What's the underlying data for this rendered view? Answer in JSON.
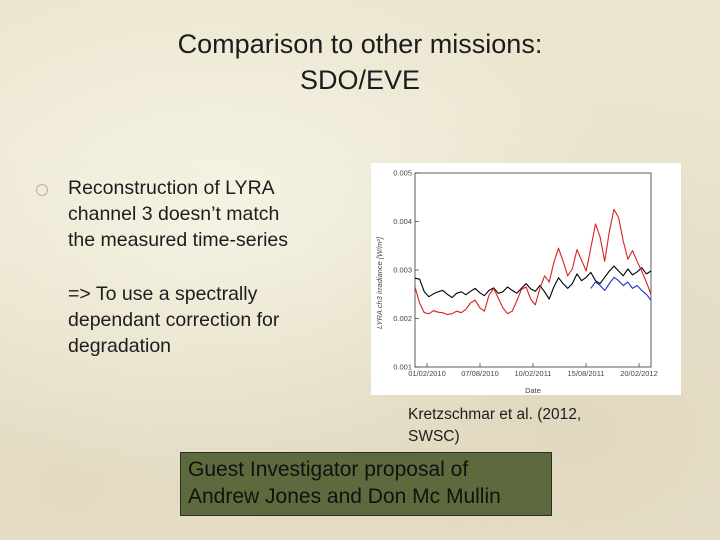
{
  "slide": {
    "title_line1": "Comparison to other missions:",
    "title_line2": "SDO/EVE",
    "bullets": [
      {
        "lines": [
          "Reconstruction of LYRA",
          "channel 3 doesn’t match",
          "the measured time-series"
        ]
      },
      {
        "lines": [
          "=> To use a spectrally",
          "dependant correction for",
          "degradation"
        ]
      }
    ],
    "caption_line1": "Kretzschmar et al. (2012,",
    "caption_line2": "SWSC)",
    "gi_line1": "Guest Investigator proposal of",
    "gi_line2": "Andrew Jones and Don Mc Mullin",
    "colors": {
      "gi_box": "#5c6a3d",
      "bullet": "#b9b29a"
    }
  },
  "chart_data": {
    "type": "line",
    "ylabel": "LYRA ch3 irradiance [W/m²]",
    "xlabel": "Date",
    "x_tick_labels": [
      "01/02/2010",
      "07/08/2010",
      "10/02/2011",
      "15/08/2011",
      "20/02/2012"
    ],
    "y_tick_labels": [
      "0.001",
      "0.002",
      "0.003",
      "0.004",
      "0.005"
    ],
    "ylim": [
      0.001,
      0.005
    ],
    "series": [
      {
        "color": "#000000",
        "values": [
          0.00283,
          0.00281,
          0.00255,
          0.00245,
          0.00251,
          0.00255,
          0.00258,
          0.0025,
          0.00243,
          0.00252,
          0.00255,
          0.00249,
          0.00256,
          0.00262,
          0.00253,
          0.00247,
          0.00258,
          0.00263,
          0.00252,
          0.00255,
          0.00265,
          0.00258,
          0.00252,
          0.00262,
          0.00272,
          0.00261,
          0.00256,
          0.00268,
          0.00255,
          0.0024,
          0.00265,
          0.00284,
          0.00272,
          0.00262,
          0.00272,
          0.00292,
          0.00278,
          0.00285,
          0.00295,
          0.00278,
          0.00272,
          0.00285,
          0.00298,
          0.00308,
          0.00298,
          0.00288,
          0.00302,
          0.0029,
          0.00296,
          0.00305,
          0.00292,
          0.00298
        ]
      },
      {
        "color": "#dd1f1f",
        "values": [
          0.00265,
          0.00232,
          0.00212,
          0.0021,
          0.00216,
          0.00213,
          0.00212,
          0.00208,
          0.0021,
          0.00215,
          0.00212,
          0.00219,
          0.00232,
          0.00238,
          0.00222,
          0.00215,
          0.00248,
          0.00262,
          0.00242,
          0.00222,
          0.0021,
          0.00215,
          0.00236,
          0.0026,
          0.00265,
          0.0024,
          0.00228,
          0.00262,
          0.00288,
          0.00275,
          0.00315,
          0.00345,
          0.00318,
          0.00288,
          0.00302,
          0.00342,
          0.0032,
          0.00298,
          0.00345,
          0.00395,
          0.00368,
          0.00318,
          0.0038,
          0.00425,
          0.00408,
          0.0036,
          0.00322,
          0.0034,
          0.00318,
          0.00298,
          0.00275,
          0.0025
        ]
      },
      {
        "color": "#1c33c9",
        "x_start_index": 38,
        "values": [
          0.00262,
          0.00275,
          0.00268,
          0.00258,
          0.00272,
          0.00285,
          0.00278,
          0.00268,
          0.00275,
          0.00262,
          0.00268,
          0.00258,
          0.0025,
          0.00238
        ]
      }
    ]
  }
}
